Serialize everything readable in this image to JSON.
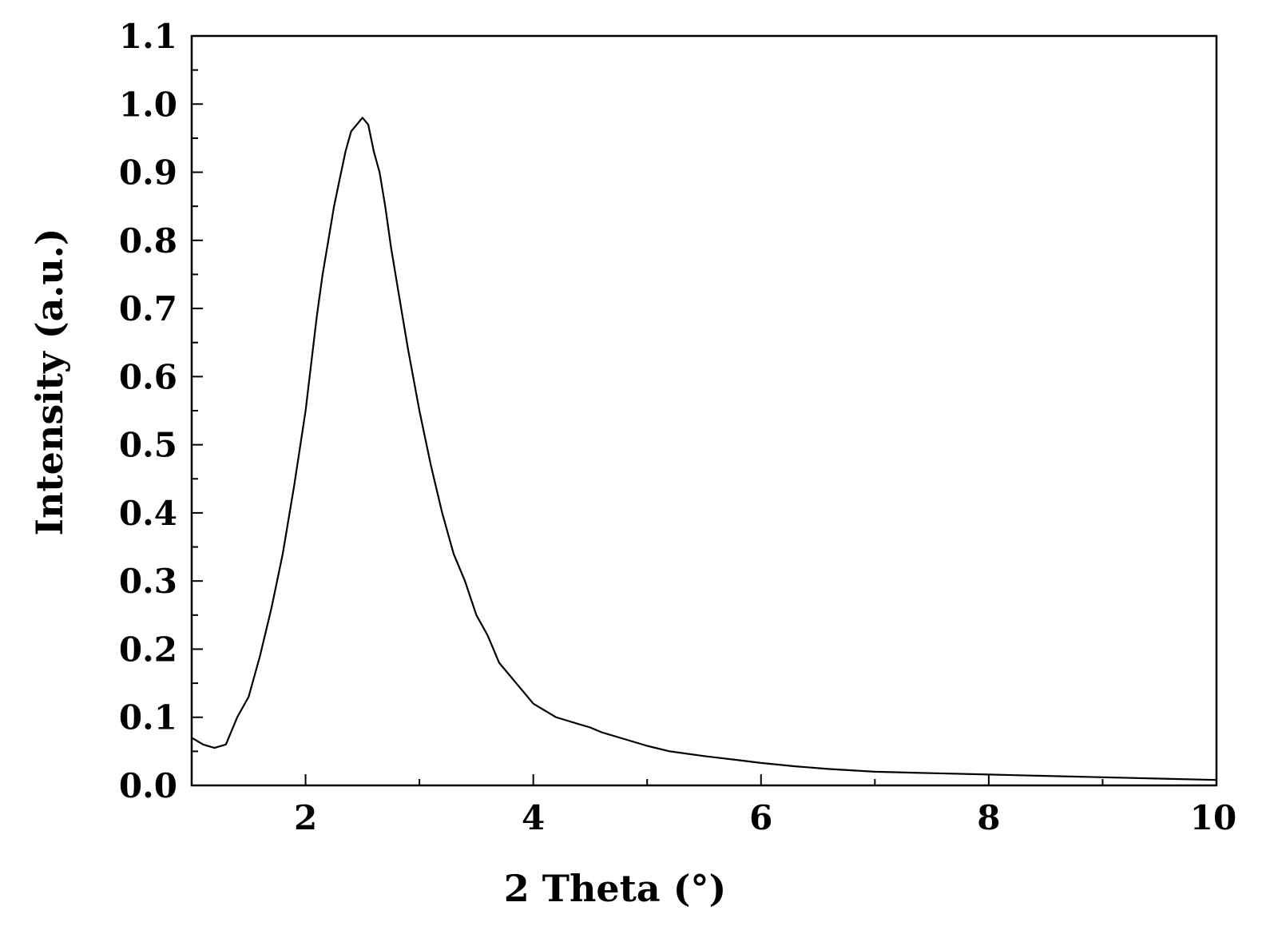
{
  "chart_data": {
    "type": "line",
    "title": "",
    "xlabel": "2 Theta (°)",
    "ylabel": "Intensity (a.u.)",
    "xlim": [
      1.0,
      10.0
    ],
    "ylim": [
      0.0,
      1.1
    ],
    "xticks": [
      2,
      4,
      6,
      8,
      10
    ],
    "xtick_labels": [
      "2",
      "4",
      "6",
      "8",
      "10"
    ],
    "yticks": [
      0.0,
      0.1,
      0.2,
      0.3,
      0.4,
      0.5,
      0.6,
      0.7,
      0.8,
      0.9,
      1.0,
      1.1
    ],
    "ytick_labels": [
      "0.0",
      "0.1",
      "0.2",
      "0.3",
      "0.4",
      "0.5",
      "0.6",
      "0.7",
      "0.8",
      "0.9",
      "1.0",
      "1.1"
    ],
    "grid": false,
    "legend": "none",
    "line_color": "#000000",
    "series": [
      {
        "x": [
          1.0,
          1.1,
          1.2,
          1.3,
          1.35,
          1.4,
          1.5,
          1.6,
          1.7,
          1.8,
          1.9,
          2.0,
          2.05,
          2.1,
          2.15,
          2.2,
          2.25,
          2.3,
          2.35,
          2.4,
          2.45,
          2.5,
          2.55,
          2.6,
          2.65,
          2.7,
          2.75,
          2.8,
          2.85,
          2.9,
          3.0,
          3.1,
          3.2,
          3.3,
          3.4,
          3.5,
          3.6,
          3.7,
          3.8,
          3.9,
          4.0,
          4.1,
          4.2,
          4.3,
          4.4,
          4.5,
          4.6,
          4.8,
          5.0,
          5.2,
          5.5,
          5.8,
          6.0,
          6.3,
          6.6,
          7.0,
          7.5,
          8.0,
          8.5,
          9.0,
          9.5,
          10.0
        ],
        "y": [
          0.07,
          0.06,
          0.055,
          0.06,
          0.08,
          0.1,
          0.13,
          0.19,
          0.26,
          0.34,
          0.44,
          0.55,
          0.62,
          0.69,
          0.75,
          0.8,
          0.85,
          0.89,
          0.93,
          0.96,
          0.97,
          0.98,
          0.97,
          0.93,
          0.9,
          0.85,
          0.79,
          0.74,
          0.69,
          0.64,
          0.55,
          0.47,
          0.4,
          0.34,
          0.3,
          0.25,
          0.22,
          0.18,
          0.16,
          0.14,
          0.12,
          0.11,
          0.1,
          0.095,
          0.09,
          0.085,
          0.078,
          0.068,
          0.058,
          0.05,
          0.043,
          0.037,
          0.033,
          0.028,
          0.024,
          0.02,
          0.018,
          0.016,
          0.014,
          0.012,
          0.01,
          0.008
        ]
      }
    ]
  }
}
